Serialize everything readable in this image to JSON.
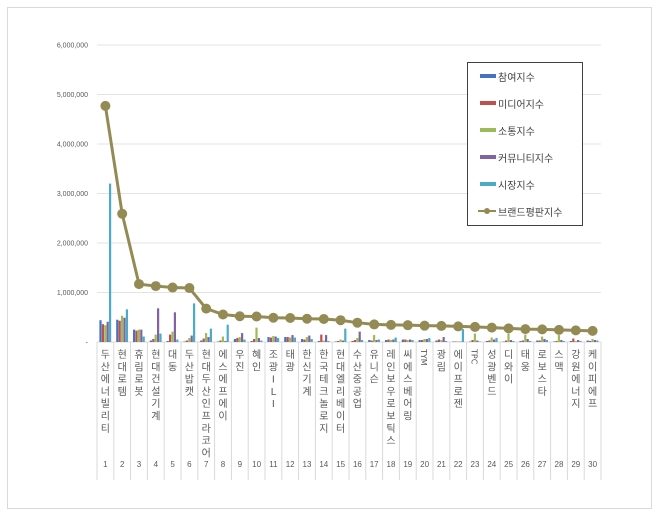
{
  "chart_data": {
    "type": "bar+line",
    "title": "",
    "xlabel": "",
    "ylabel": "",
    "ylim": [
      0,
      6000000
    ],
    "yticks": [
      "-",
      "1,000,000",
      "2,000,000",
      "3,000,000",
      "4,000,000",
      "5,000,000",
      "6,000,000"
    ],
    "grid": true,
    "legend_position": "upper-right-inside",
    "x_numbers": [
      "1",
      "2",
      "3",
      "4",
      "5",
      "6",
      "7",
      "8",
      "9",
      "10",
      "11",
      "12",
      "13",
      "14",
      "15",
      "16",
      "17",
      "18",
      "19",
      "20",
      "21",
      "22",
      "23",
      "24",
      "25",
      "26",
      "27",
      "28",
      "29",
      "30"
    ],
    "categories": [
      "두산에너빌리티",
      "현대로템",
      "휴림로봇",
      "현대건설기계",
      "대동",
      "두산밥캣",
      "현대두산인프라코어",
      "에스에프에이",
      "우진",
      "혜인",
      "조광ILI",
      "태광",
      "한신기계",
      "한국테크놀로지",
      "현대엘리베이터",
      "수산중공업",
      "유니슨",
      "레인보우로보틱스",
      "씨에스베어링",
      "TYM",
      "광림",
      "에이프로젠",
      "TPC",
      "성광벤드",
      "디와이",
      "태웅",
      "로보스타",
      "스맥",
      "강원에너지",
      "케이피에프"
    ],
    "series": [
      {
        "name": "참여지수",
        "type": "bar",
        "color": "#4472c4",
        "values": [
          440000,
          450000,
          250000,
          30000,
          20000,
          10000,
          30000,
          10000,
          60000,
          20000,
          100000,
          100000,
          60000,
          20000,
          10000,
          20000,
          40000,
          40000,
          50000,
          40000,
          30000,
          10000,
          10000,
          20000,
          10000,
          20000,
          30000,
          10000,
          20000,
          30000
        ]
      },
      {
        "name": "미디어지수",
        "type": "bar",
        "color": "#c0504d",
        "values": [
          360000,
          430000,
          230000,
          60000,
          150000,
          30000,
          70000,
          30000,
          80000,
          60000,
          90000,
          100000,
          50000,
          150000,
          20000,
          40000,
          30000,
          50000,
          50000,
          40000,
          50000,
          10000,
          40000,
          30000,
          30000,
          30000,
          30000,
          20000,
          70000,
          20000
        ]
      },
      {
        "name": "소통지수",
        "type": "bar",
        "color": "#9bbb59",
        "values": [
          340000,
          530000,
          250000,
          150000,
          210000,
          80000,
          180000,
          110000,
          100000,
          290000,
          120000,
          90000,
          100000,
          30000,
          50000,
          80000,
          140000,
          40000,
          40000,
          60000,
          40000,
          10000,
          170000,
          90000,
          170000,
          150000,
          110000,
          140000,
          20000,
          60000
        ]
      },
      {
        "name": "커뮤니티지수",
        "type": "bar",
        "color": "#8064a2",
        "values": [
          410000,
          490000,
          250000,
          680000,
          600000,
          130000,
          100000,
          20000,
          180000,
          80000,
          110000,
          140000,
          130000,
          140000,
          30000,
          210000,
          40000,
          50000,
          50000,
          60000,
          100000,
          10000,
          30000,
          50000,
          40000,
          60000,
          60000,
          40000,
          40000,
          40000
        ]
      },
      {
        "name": "시장지수",
        "type": "bar",
        "color": "#4bacc6",
        "values": [
          3200000,
          660000,
          110000,
          170000,
          50000,
          780000,
          270000,
          350000,
          50000,
          30000,
          80000,
          90000,
          60000,
          20000,
          270000,
          40000,
          50000,
          90000,
          40000,
          80000,
          20000,
          260000,
          10000,
          80000,
          20000,
          20000,
          40000,
          20000,
          20000,
          30000
        ]
      },
      {
        "name": "브랜드평판지수",
        "type": "line",
        "color": "#948a54",
        "values": [
          4770000,
          2590000,
          1170000,
          1130000,
          1100000,
          1090000,
          674000,
          556000,
          520000,
          515000,
          490000,
          485000,
          470000,
          465000,
          440000,
          390000,
          355000,
          345000,
          340000,
          330000,
          325000,
          315000,
          305000,
          290000,
          275000,
          260000,
          255000,
          245000,
          235000,
          225000
        ]
      }
    ]
  },
  "legend": {
    "items": [
      {
        "label": "참여지수",
        "color": "#4472c4",
        "kind": "bar"
      },
      {
        "label": "미디어지수",
        "color": "#c0504d",
        "kind": "bar"
      },
      {
        "label": "소통지수",
        "color": "#9bbb59",
        "kind": "bar"
      },
      {
        "label": "커뮤니티지수",
        "color": "#8064a2",
        "kind": "bar"
      },
      {
        "label": "시장지수",
        "color": "#4bacc6",
        "kind": "bar"
      },
      {
        "label": "브랜드평판지수",
        "color": "#948a54",
        "kind": "line"
      }
    ]
  }
}
